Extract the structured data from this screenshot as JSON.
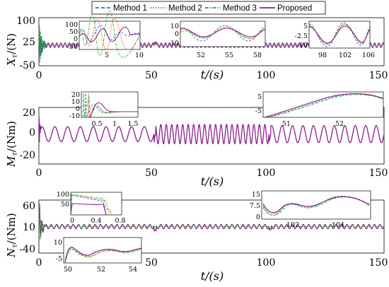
{
  "colors": {
    "Method 1": "#1f77d0",
    "Method 2": "#e8501c",
    "Method 3": "#1faa1f",
    "Proposed": "#8b1f8b"
  },
  "chart_data": {
    "type": "line",
    "legend": {
      "position": "top-center",
      "entries": [
        {
          "name": "Method 1",
          "style": "dashed"
        },
        {
          "name": "Method 2",
          "style": "dotted"
        },
        {
          "name": "Method 3",
          "style": "dash-dot"
        },
        {
          "name": "Proposed",
          "style": "solid"
        }
      ]
    },
    "panels": [
      {
        "id": "X",
        "ylabel_main": "X",
        "ylabel_sub": "τ",
        "ylabel_unit": "/(N)",
        "xlabel": "t/(s)",
        "xlim": [
          0,
          150
        ],
        "ylim": [
          -50,
          100
        ],
        "xticks": [
          "0",
          "50",
          "100",
          "150"
        ],
        "yticks": [
          "-50",
          "25",
          "100"
        ],
        "ytick_values": [
          -50,
          25,
          100
        ],
        "series": [
          {
            "name": "Proposed",
            "x": [
              0,
              1,
              2,
              3,
              5,
              10,
              20,
              30,
              40,
              50,
              51,
              55,
              60,
              80,
              100,
              101,
              105,
              120,
              140,
              150
            ],
            "y": [
              10,
              40,
              35,
              0,
              15,
              8,
              12,
              14,
              9,
              12,
              18,
              10,
              12,
              8,
              12,
              15,
              10,
              12,
              9,
              12
            ]
          }
        ],
        "insets": [
          {
            "id": "X-inset-1",
            "xlim": [
              0,
              10
            ],
            "ylim": [
              -50,
              100
            ],
            "xticks": [
              "5",
              "10"
            ],
            "yticks": [
              "100",
              "50",
              "0",
              "-50"
            ]
          },
          {
            "id": "X-inset-2",
            "xlim": [
              50,
              58
            ],
            "ylim": [
              -10,
              20
            ],
            "xticks": [
              "52",
              "55",
              "58"
            ],
            "yticks": [
              "10",
              "0",
              "-10"
            ]
          },
          {
            "id": "X-inset-3",
            "xlim": [
              96,
              106
            ],
            "ylim": [
              -10,
              7.5
            ],
            "xticks": [
              "98",
              "102",
              "106"
            ],
            "yticks": [
              "5",
              "-2.5",
              "-10"
            ]
          }
        ]
      },
      {
        "id": "M",
        "ylabel_main": "M",
        "ylabel_sub": "τ",
        "ylabel_unit": "/(Nm)",
        "xlabel": "t/(s)",
        "xlim": [
          0,
          150
        ],
        "ylim": [
          -28,
          25
        ],
        "xticks": [
          "0",
          "50",
          "100",
          "150"
        ],
        "yticks": [
          "-20",
          "0",
          "20"
        ],
        "ytick_values": [
          -20,
          0,
          20
        ],
        "series": [
          {
            "name": "Proposed",
            "amp_segments": [
              [
                0,
                50,
                8
              ],
              [
                50,
                100,
                10
              ],
              [
                100,
                150,
                9
              ]
            ],
            "transient": [
              [
                0,
                20
              ],
              [
                0.4,
                -20
              ],
              [
                1,
                5
              ]
            ]
          }
        ],
        "insets": [
          {
            "id": "M-inset-1",
            "xlim": [
              0,
              1.5
            ],
            "ylim": [
              -10,
              20
            ],
            "xticks": [
              "0.5",
              "1",
              "1.5"
            ],
            "yticks": [
              "20",
              "10",
              "0",
              "-10"
            ]
          },
          {
            "id": "M-inset-2",
            "xlim": [
              50,
              53
            ],
            "ylim": [
              -8,
              6
            ],
            "xticks": [
              "51",
              "52"
            ],
            "yticks": [
              "5",
              "-5"
            ]
          }
        ]
      },
      {
        "id": "N",
        "ylabel_main": "N",
        "ylabel_sub": "τ",
        "ylabel_unit": "/(Nm)",
        "xlabel": "t/(s)",
        "xlim": [
          0,
          150
        ],
        "ylim": [
          -40,
          60
        ],
        "xticks": [
          "0",
          "50",
          "100",
          "150"
        ],
        "yticks": [
          "-40",
          "10",
          "60"
        ],
        "ytick_values": [
          -40,
          10,
          60
        ],
        "series": [
          {
            "name": "Proposed",
            "x": [
              0,
              0.3,
              0.6,
              1,
              2,
              4,
              10,
              20,
              30,
              40,
              50,
              51,
              55,
              60,
              80,
              100,
              101,
              105,
              120,
              140,
              150
            ],
            "y": [
              0,
              60,
              -40,
              10,
              5,
              15,
              8,
              12,
              9,
              14,
              8,
              0,
              12,
              9,
              13,
              8,
              5,
              10,
              12,
              9,
              11
            ]
          }
        ],
        "insets": [
          {
            "id": "N-inset-1",
            "xlim": [
              0,
              0.8
            ],
            "ylim": [
              0,
              100
            ],
            "xticks": [
              "0",
              "0.4",
              "0.8"
            ],
            "yticks": [
              "100",
              "50"
            ]
          },
          {
            "id": "N-inset-2",
            "xlim": [
              100,
              105
            ],
            "ylim": [
              0,
              15
            ],
            "xticks": [
              "102",
              "104"
            ],
            "yticks": [
              "15",
              "7.5",
              "0"
            ]
          },
          {
            "id": "N-inset-3",
            "xlim": [
              50,
              55
            ],
            "ylim": [
              -5,
              12
            ],
            "xticks": [
              "50",
              "52",
              "54"
            ],
            "yticks": [
              "10",
              "-5"
            ]
          }
        ]
      }
    ]
  }
}
